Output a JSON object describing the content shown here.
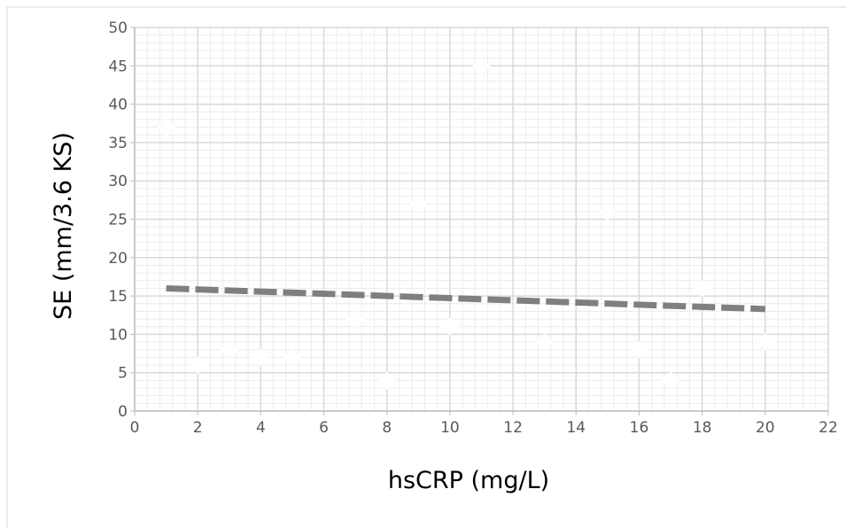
{
  "chart_data": {
    "type": "scatter",
    "title": "",
    "xlabel": "hsCRP  (mg/L)",
    "ylabel": "SE (mm/3.6 KS)",
    "xlim": [
      0,
      22
    ],
    "ylim": [
      0,
      50
    ],
    "x_major_step": 2,
    "y_major_step": 5,
    "x_minor_step": 0.4,
    "y_minor_step": 1,
    "x_ticks": [
      "0",
      "2",
      "4",
      "6",
      "8",
      "10",
      "12",
      "14",
      "16",
      "18",
      "20",
      "22"
    ],
    "y_ticks": [
      "0",
      "5",
      "10",
      "15",
      "20",
      "25",
      "30",
      "35",
      "40",
      "45",
      "50"
    ],
    "grid": true,
    "legend": "none",
    "series": [
      {
        "marker": "diamond",
        "color": "#ffffff",
        "points": [
          {
            "x": 1,
            "y": 37
          },
          {
            "x": 2,
            "y": 6
          },
          {
            "x": 3,
            "y": 8
          },
          {
            "x": 4,
            "y": 7
          },
          {
            "x": 5,
            "y": 7
          },
          {
            "x": 7,
            "y": 12
          },
          {
            "x": 8,
            "y": 4
          },
          {
            "x": 9,
            "y": 27
          },
          {
            "x": 10,
            "y": 11
          },
          {
            "x": 11,
            "y": 45
          },
          {
            "x": 13,
            "y": 9
          },
          {
            "x": 15,
            "y": 26
          },
          {
            "x": 16,
            "y": 8
          },
          {
            "x": 17,
            "y": 4
          },
          {
            "x": 18,
            "y": 16
          },
          {
            "x": 20,
            "y": 9
          }
        ]
      }
    ],
    "trendline": {
      "style": "dashed",
      "color": "#7f7f7f",
      "x": [
        1,
        20
      ],
      "y": [
        16,
        13.3
      ]
    },
    "colors": {
      "major_grid": "#d9d9d9",
      "minor_grid": "#ececec",
      "axis": "#bfbfbf"
    }
  }
}
